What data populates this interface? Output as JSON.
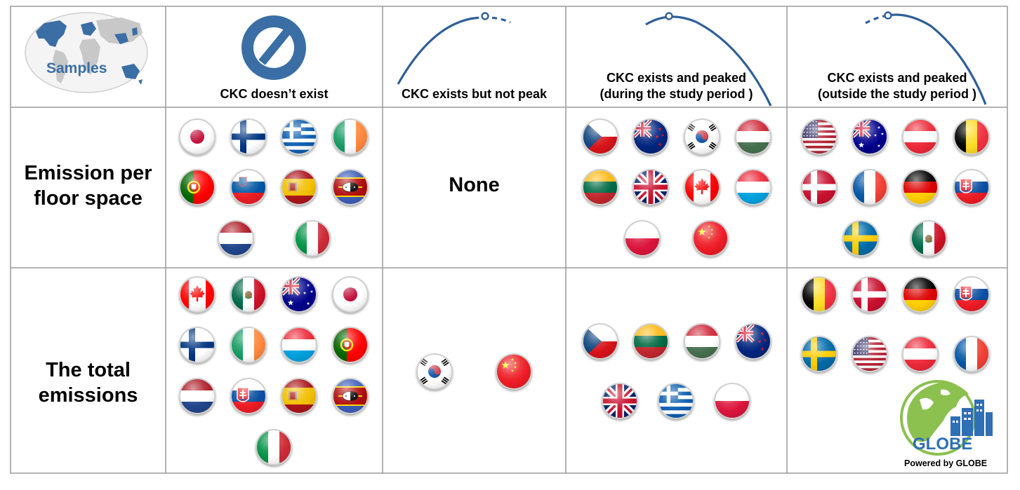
{
  "header": {
    "samples_label": "Samples",
    "col1": "CKC doesn’t exist",
    "col2": "CKC exists but not peak",
    "col3": "CKC exists and peaked\n(during the study period )",
    "col4": "CKC exists and peaked\n(outside the study period )"
  },
  "rows": {
    "row1_label": "Emission per\nfloor space",
    "row2_label": "The total\nemissions"
  },
  "none_label": "None",
  "logo": {
    "name": "GLOBE",
    "powered_by": "Powered by GLOBE"
  },
  "colors": {
    "accent_blue": "#3a6ea5",
    "grid": "#9a9a9a",
    "globe_green": "#8cc04f",
    "globe_blue": "#2f6fb5"
  },
  "groups": {
    "floor_space_no_ckc": [
      "japan",
      "finland",
      "greece",
      "ireland",
      "portugal",
      "slovenia",
      "spain",
      "eswatini",
      "netherlands",
      "italy"
    ],
    "floor_space_peaked_during": [
      "czechia",
      "new-zealand",
      "south-korea",
      "hungary",
      "lithuania",
      "united-kingdom",
      "canada",
      "luxembourg",
      "poland",
      "china"
    ],
    "floor_space_peaked_outside": [
      "united-states",
      "australia",
      "austria",
      "belgium",
      "denmark",
      "france",
      "germany",
      "slovakia",
      "sweden",
      "mexico"
    ],
    "total_no_ckc": [
      "canada",
      "mexico",
      "australia",
      "japan",
      "finland",
      "ireland",
      "luxembourg",
      "portugal",
      "netherlands",
      "slovakia",
      "spain",
      "eswatini",
      "italy"
    ],
    "total_not_peak": [
      "south-korea",
      "china"
    ],
    "total_peaked_during": [
      "czechia",
      "lithuania",
      "hungary",
      "new-zealand",
      "united-kingdom",
      "greece",
      "poland"
    ],
    "total_peaked_outside": [
      "belgium",
      "denmark",
      "germany",
      "slovakia",
      "sweden",
      "united-states",
      "austria",
      "france"
    ]
  }
}
